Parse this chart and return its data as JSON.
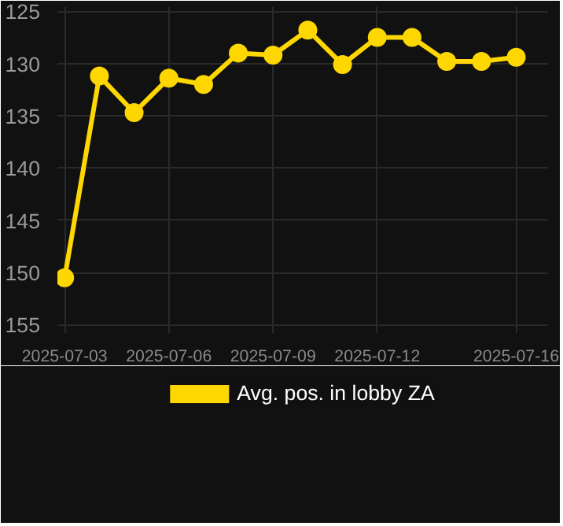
{
  "chart_data": {
    "type": "line",
    "x": [
      "2025-07-03",
      "2025-07-04",
      "2025-07-05",
      "2025-07-06",
      "2025-07-07",
      "2025-07-08",
      "2025-07-09",
      "2025-07-10",
      "2025-07-11",
      "2025-07-12",
      "2025-07-13",
      "2025-07-14",
      "2025-07-15",
      "2025-07-16"
    ],
    "series": [
      {
        "name": "Avg. pos. in lobby ZA",
        "color": "#ffd700",
        "values": [
          150.5,
          131.2,
          134.7,
          131.4,
          132.0,
          129.0,
          129.2,
          126.8,
          130.1,
          127.5,
          127.5,
          129.8,
          129.8,
          129.4
        ]
      }
    ],
    "xlim": [
      "2025-07-02T19:00",
      "2025-07-16T22:00"
    ],
    "xticks": [
      "2025-07-03",
      "2025-07-06",
      "2025-07-09",
      "2025-07-12",
      "2025-07-16"
    ],
    "ylim": [
      155.8,
      124.6
    ],
    "yticks": [
      125,
      130,
      135,
      140,
      145,
      150,
      155
    ],
    "grid": true,
    "legend": "bottom",
    "marker": "circle",
    "line_style": "solid"
  }
}
